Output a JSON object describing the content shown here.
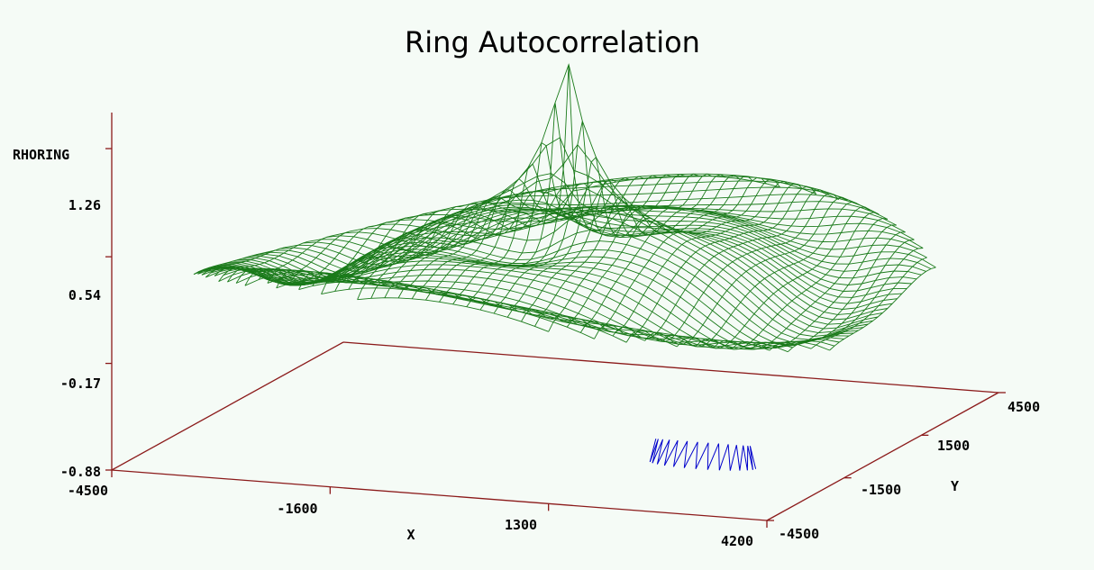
{
  "chart_data": {
    "type": "surface",
    "title": "Ring Autocorrelation",
    "zlabel": "RHORING",
    "xlabel": "X",
    "ylabel": "Y",
    "z_ticks": [
      "1.26",
      "0.54",
      "-0.17",
      "-0.88"
    ],
    "x_ticks": [
      "-4500",
      "-1600",
      "1300",
      "4200"
    ],
    "y_ticks": [
      "-4500",
      "-1500",
      "1500",
      "4500"
    ],
    "zlim": [
      -0.88,
      1.5
    ],
    "xlim": [
      -4500,
      4200
    ],
    "ylim": [
      -4500,
      4500
    ],
    "grid": false,
    "peak": {
      "x": 0,
      "y": 0,
      "z": 1.45
    },
    "colors": {
      "axis": "#8b1a1a",
      "surface": "#1a7a1a",
      "negative_region": "#0000cc",
      "background": "#f5fbf6"
    }
  }
}
